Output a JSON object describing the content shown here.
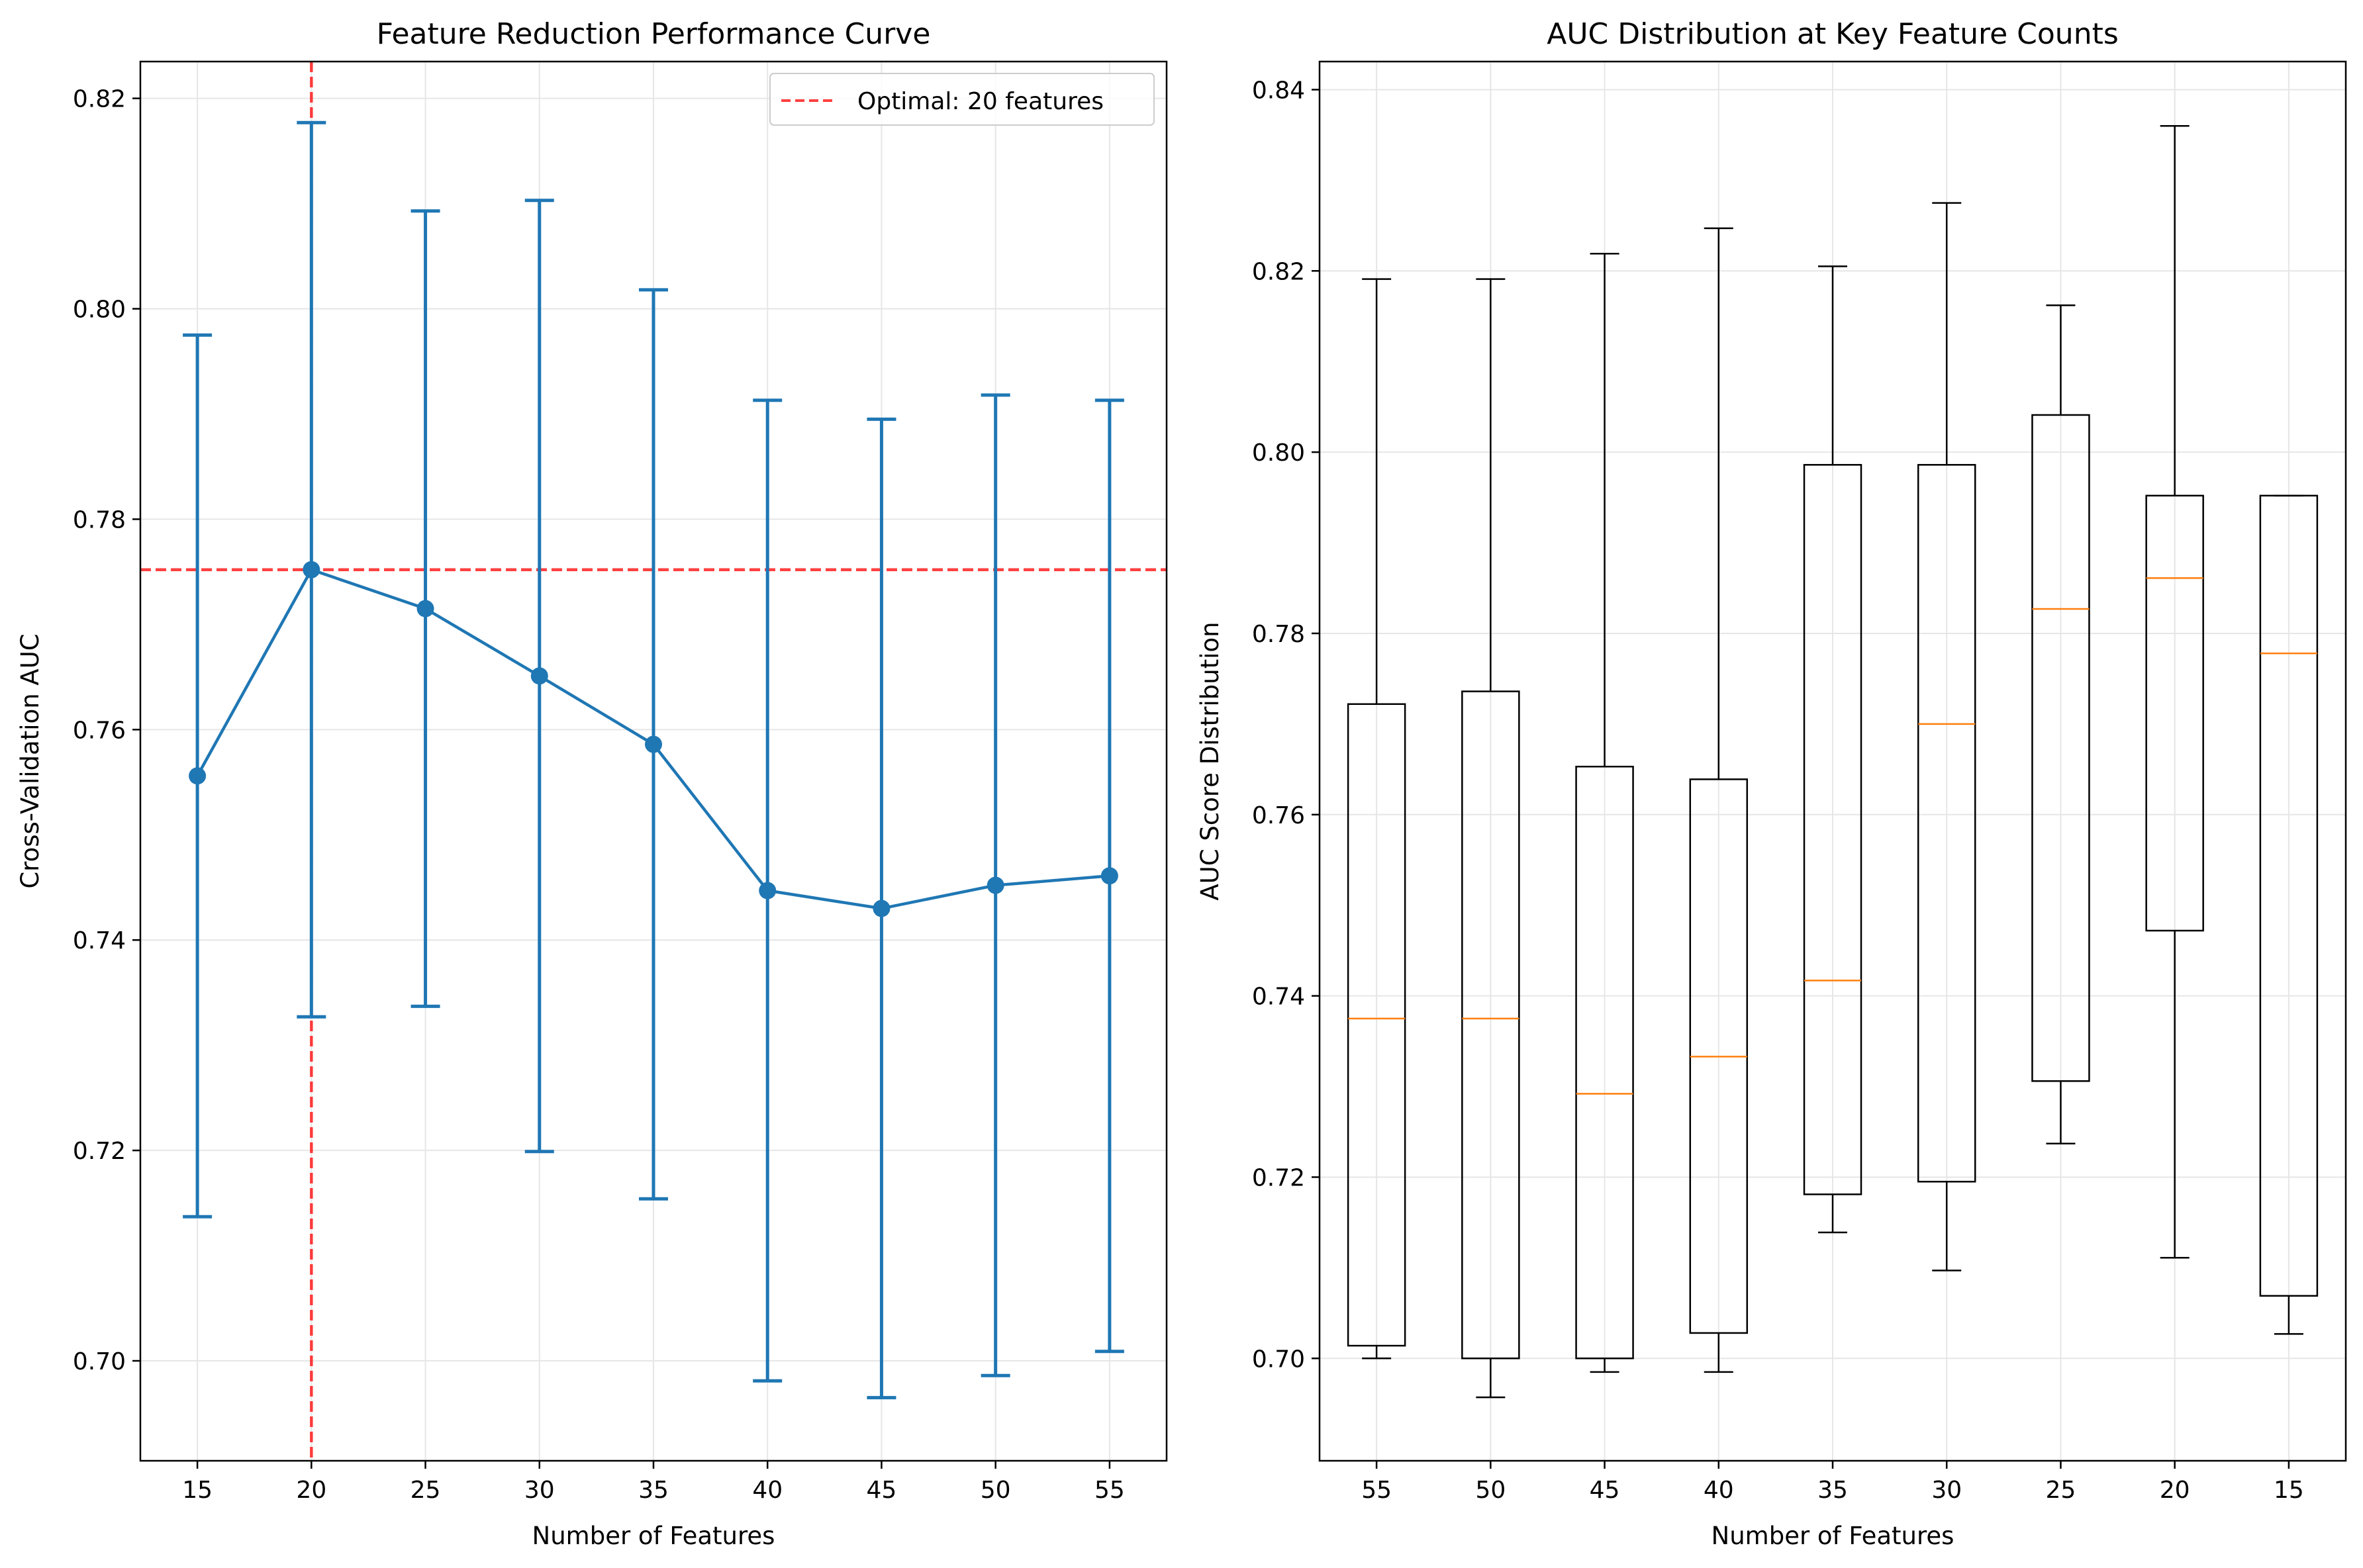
{
  "chart_data": [
    {
      "type": "line",
      "title": "Feature Reduction Performance Curve",
      "xlabel": "Number of Features",
      "ylabel": "Cross-Validation AUC",
      "x": [
        15,
        20,
        25,
        30,
        35,
        40,
        45,
        50,
        55
      ],
      "x_ticks": [
        "15",
        "20",
        "25",
        "30",
        "35",
        "40",
        "45",
        "50",
        "55"
      ],
      "xlim": [
        12.5,
        57.5
      ],
      "ylim": [
        0.6905,
        0.8235
      ],
      "y_ticks": [
        "0.70",
        "0.72",
        "0.74",
        "0.76",
        "0.78",
        "0.80",
        "0.82"
      ],
      "series": [
        {
          "values": [
            0.7556,
            0.7752,
            0.7715,
            0.7651,
            0.7586,
            0.7447,
            0.743,
            0.7452,
            0.7461
          ],
          "error": [
            0.0419,
            0.0425,
            0.0378,
            0.0452,
            0.0432,
            0.0466,
            0.0465,
            0.0466,
            0.0452
          ],
          "color": "#1f77b4"
        }
      ],
      "reference_lines": {
        "label": "Optimal: 20 features",
        "vertical_x": 20,
        "horizontal_y": 0.7752,
        "color": "#ff0000"
      },
      "legend": {
        "entries": [
          "Optimal: 20 features"
        ],
        "position": "top-right"
      },
      "grid": true
    },
    {
      "type": "box",
      "title": "AUC Distribution at Key Feature Counts",
      "xlabel": "Number of Features",
      "ylabel": "AUC Score Distribution",
      "categories": [
        "55",
        "50",
        "45",
        "40",
        "35",
        "30",
        "25",
        "20",
        "15"
      ],
      "ylim": [
        0.6887,
        0.8431
      ],
      "y_ticks": [
        "0.70",
        "0.72",
        "0.74",
        "0.76",
        "0.78",
        "0.80",
        "0.82",
        "0.84"
      ],
      "boxes": [
        {
          "whisker_low": 0.7,
          "q1": 0.7014,
          "median": 0.7375,
          "q3": 0.7722,
          "whisker_high": 0.8191
        },
        {
          "whisker_low": 0.6957,
          "q1": 0.7,
          "median": 0.7375,
          "q3": 0.7736,
          "whisker_high": 0.8191
        },
        {
          "whisker_low": 0.6985,
          "q1": 0.7,
          "median": 0.7292,
          "q3": 0.7653,
          "whisker_high": 0.8219
        },
        {
          "whisker_low": 0.6985,
          "q1": 0.7028,
          "median": 0.7333,
          "q3": 0.7639,
          "whisker_high": 0.8247
        },
        {
          "whisker_low": 0.7139,
          "q1": 0.7181,
          "median": 0.7417,
          "q3": 0.7986,
          "whisker_high": 0.8205
        },
        {
          "whisker_low": 0.7097,
          "q1": 0.7195,
          "median": 0.77,
          "q3": 0.7986,
          "whisker_high": 0.8275
        },
        {
          "whisker_low": 0.7237,
          "q1": 0.7306,
          "median": 0.7827,
          "q3": 0.8041,
          "whisker_high": 0.8162
        },
        {
          "whisker_low": 0.7111,
          "q1": 0.7472,
          "median": 0.7861,
          "q3": 0.7952,
          "whisker_high": 0.836
        },
        {
          "whisker_low": 0.7027,
          "q1": 0.7069,
          "median": 0.7778,
          "q3": 0.7952,
          "whisker_high": 0.7952
        }
      ],
      "median_color": "#ff7f0e",
      "grid": true
    }
  ]
}
